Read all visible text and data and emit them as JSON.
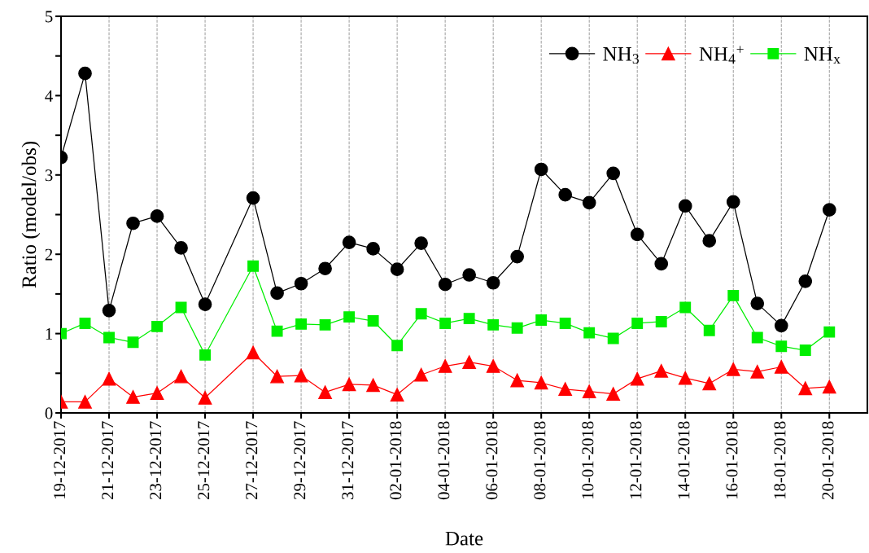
{
  "chart_data": {
    "type": "line",
    "xlabel": "Date",
    "ylabel": "Ratio (model/obs)",
    "x": [
      "2017-12-19",
      "2017-12-20",
      "2017-12-21",
      "2017-12-22",
      "2017-12-23",
      "2017-12-24",
      "2017-12-25",
      "2017-12-27",
      "2017-12-28",
      "2017-12-29",
      "2017-12-30",
      "2017-12-31",
      "2018-01-01",
      "2018-01-02",
      "2018-01-03",
      "2018-01-04",
      "2018-01-05",
      "2018-01-06",
      "2018-01-07",
      "2018-01-08",
      "2018-01-09",
      "2018-01-10",
      "2018-01-11",
      "2018-01-12",
      "2018-01-13",
      "2018-01-14",
      "2018-01-15",
      "2018-01-16",
      "2018-01-17",
      "2018-01-18",
      "2018-01-19",
      "2018-01-20"
    ],
    "series": [
      {
        "name": "NH$_{3}$",
        "color": "#000000",
        "marker": "circle",
        "values": [
          3.22,
          4.28,
          1.29,
          2.39,
          2.48,
          2.08,
          1.37,
          2.71,
          1.51,
          1.63,
          1.82,
          2.15,
          2.07,
          1.81,
          2.14,
          1.62,
          1.74,
          1.64,
          1.97,
          3.07,
          2.75,
          2.65,
          3.02,
          2.25,
          1.88,
          2.61,
          2.17,
          2.66,
          1.38,
          1.1,
          1.66,
          2.56
        ]
      },
      {
        "name": "NH$_{4}$$^{+}$",
        "color": "#ff0000",
        "marker": "triangle",
        "values": [
          0.14,
          0.14,
          0.43,
          0.2,
          0.25,
          0.46,
          0.19,
          0.76,
          0.46,
          0.47,
          0.26,
          0.36,
          0.35,
          0.23,
          0.48,
          0.59,
          0.64,
          0.59,
          0.41,
          0.38,
          0.3,
          0.27,
          0.24,
          0.43,
          0.53,
          0.44,
          0.37,
          0.55,
          0.52,
          0.58,
          0.31,
          0.33
        ]
      },
      {
        "name": "NH$_{x}$",
        "color": "#00ee00",
        "marker": "square",
        "values": [
          1.0,
          1.13,
          0.95,
          0.89,
          1.09,
          1.33,
          0.73,
          1.85,
          1.03,
          1.12,
          1.11,
          1.21,
          1.16,
          0.85,
          1.25,
          1.13,
          1.19,
          1.11,
          1.07,
          1.17,
          1.13,
          1.01,
          0.94,
          1.13,
          1.15,
          1.33,
          1.04,
          1.48,
          0.95,
          0.84,
          0.79,
          1.02
        ]
      }
    ],
    "xlim": [
      "2017-12-19",
      "2018-01-21T14:00"
    ],
    "xticks": [
      {
        "value": "2017-12-19",
        "label": "19-12-2017"
      },
      {
        "value": "2017-12-21",
        "label": "21-12-2017"
      },
      {
        "value": "2017-12-23",
        "label": "23-12-2017"
      },
      {
        "value": "2017-12-25",
        "label": "25-12-2017"
      },
      {
        "value": "2017-12-27",
        "label": "27-12-2017"
      },
      {
        "value": "2017-12-29",
        "label": "29-12-2017"
      },
      {
        "value": "2017-12-31",
        "label": "31-12-2017"
      },
      {
        "value": "2018-01-02",
        "label": "02-01-2018"
      },
      {
        "value": "2018-01-04",
        "label": "04-01-2018"
      },
      {
        "value": "2018-01-06",
        "label": "06-01-2018"
      },
      {
        "value": "2018-01-08",
        "label": "08-01-2018"
      },
      {
        "value": "2018-01-10",
        "label": "10-01-2018"
      },
      {
        "value": "2018-01-12",
        "label": "12-01-2018"
      },
      {
        "value": "2018-01-14",
        "label": "14-01-2018"
      },
      {
        "value": "2018-01-16",
        "label": "16-01-2018"
      },
      {
        "value": "2018-01-18",
        "label": "18-01-2018"
      },
      {
        "value": "2018-01-20",
        "label": "20-01-2018"
      }
    ],
    "ylim": [
      0,
      5
    ],
    "yticks": [
      0,
      {
        "value": 0.5,
        "label": null
      },
      1,
      {
        "value": 1.5,
        "label": null
      },
      2,
      {
        "value": 2.5,
        "label": null
      },
      3,
      {
        "value": 3.5,
        "label": null
      },
      4,
      {
        "value": 4.5,
        "label": null
      },
      5
    ],
    "grid": "x",
    "legend": "top right",
    "line_style": "solid"
  }
}
